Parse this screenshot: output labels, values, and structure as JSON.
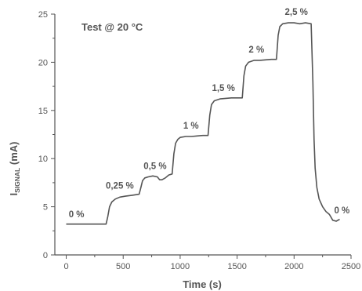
{
  "chart_data": {
    "type": "line",
    "title": "Test @ 20 °C",
    "xlabel": "Time (s)",
    "ylabel_main": "I",
    "ylabel_sub": "SIGNAL",
    "ylabel_unit": " (mA)",
    "xlim": [
      -100,
      2500
    ],
    "ylim": [
      0,
      25
    ],
    "x_ticks": [
      "0",
      "500",
      "1000",
      "1500",
      "2000",
      "2500"
    ],
    "y_ticks": [
      "0",
      "5",
      "10",
      "15",
      "20",
      "25"
    ],
    "x_tick_values": [
      0,
      500,
      1000,
      1500,
      2000,
      2500
    ],
    "y_tick_values": [
      0,
      5,
      10,
      15,
      20,
      25
    ],
    "grid": false,
    "line_color": "#555555",
    "series": [
      {
        "x": [
          0,
          350,
          365,
          380,
          400,
          430,
          470,
          520,
          580,
          640,
          655,
          670,
          690,
          720,
          760,
          800,
          820,
          840,
          870,
          900,
          930,
          945,
          960,
          980,
          1000,
          1050,
          1100,
          1150,
          1200,
          1245,
          1260,
          1275,
          1300,
          1350,
          1400,
          1450,
          1500,
          1545,
          1560,
          1575,
          1600,
          1650,
          1700,
          1750,
          1800,
          1845,
          1860,
          1875,
          1900,
          1950,
          2000,
          2050,
          2100,
          2150,
          2165,
          2175,
          2185,
          2200,
          2220,
          2250,
          2280,
          2310,
          2340,
          2370,
          2400
        ],
        "y": [
          3.2,
          3.2,
          4.0,
          5.0,
          5.5,
          5.8,
          6.0,
          6.1,
          6.2,
          6.3,
          7.0,
          7.7,
          8.0,
          8.1,
          8.2,
          8.1,
          7.8,
          7.8,
          8.0,
          8.3,
          8.4,
          10.5,
          11.6,
          12.0,
          12.2,
          12.3,
          12.3,
          12.35,
          12.4,
          12.4,
          14.5,
          15.6,
          16.0,
          16.2,
          16.25,
          16.3,
          16.3,
          16.3,
          18.6,
          19.6,
          20.0,
          20.2,
          20.2,
          20.25,
          20.3,
          20.3,
          22.8,
          23.7,
          24.0,
          24.1,
          24.1,
          24.0,
          24.1,
          24.0,
          18.0,
          12.0,
          9.0,
          7.0,
          5.8,
          5.0,
          4.5,
          4.2,
          3.6,
          3.5,
          3.7
        ]
      }
    ],
    "annotations": [
      {
        "text": "0 %",
        "x": 90,
        "y": 3.9
      },
      {
        "text": "0,25 %",
        "x": 470,
        "y": 6.9
      },
      {
        "text": "0,5 %",
        "x": 780,
        "y": 8.9
      },
      {
        "text": "1 %",
        "x": 1095,
        "y": 13.1
      },
      {
        "text": "1,5 %",
        "x": 1380,
        "y": 17.0
      },
      {
        "text": "2 %",
        "x": 1670,
        "y": 21.0
      },
      {
        "text": "2,5 %",
        "x": 2020,
        "y": 24.9
      },
      {
        "text": "0 %",
        "x": 2420,
        "y": 4.3
      }
    ]
  }
}
